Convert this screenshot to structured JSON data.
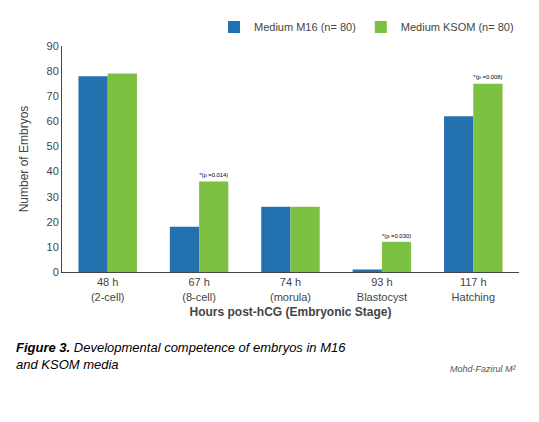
{
  "chart_data": {
    "type": "bar",
    "categories": [
      "48 h\n(2-cell)",
      "67 h\n(8-cell)",
      "74 h\n(morula)",
      "93 h\nBlastocyst",
      "117 h\nHatching"
    ],
    "series": [
      {
        "name": "Medium M16 (n= 80)",
        "color": "#2471b0",
        "values": [
          78,
          18,
          26,
          1,
          62
        ]
      },
      {
        "name": "Medium KSOM (n= 80)",
        "color": "#7dc142",
        "values": [
          79,
          36,
          26,
          12,
          75
        ]
      }
    ],
    "xlabel": "Hours post-hCG (Embryonic Stage)",
    "ylabel": "Number of Embryos",
    "ylim": [
      0,
      90
    ],
    "yticks": [
      0,
      10,
      20,
      30,
      40,
      50,
      60,
      70,
      80,
      90
    ],
    "grid": false,
    "legend": "top",
    "annotations": [
      {
        "category": "67 h\n(8-cell)",
        "series": "Medium KSOM (n= 80)",
        "text": "*(p =0.014)"
      },
      {
        "category": "93 h\nBlastocyst",
        "series": "Medium KSOM (n= 80)",
        "text": "*(p =0.030)"
      },
      {
        "category": "117 h\nHatching",
        "series": "Medium KSOM (n= 80)",
        "text": "*(p =0.008)"
      }
    ],
    "watermark": "Mohd-Fazirul M²",
    "caption": [
      "Figure 3.",
      "Developmental competence of embryos in M16\nand KSOM media"
    ]
  }
}
